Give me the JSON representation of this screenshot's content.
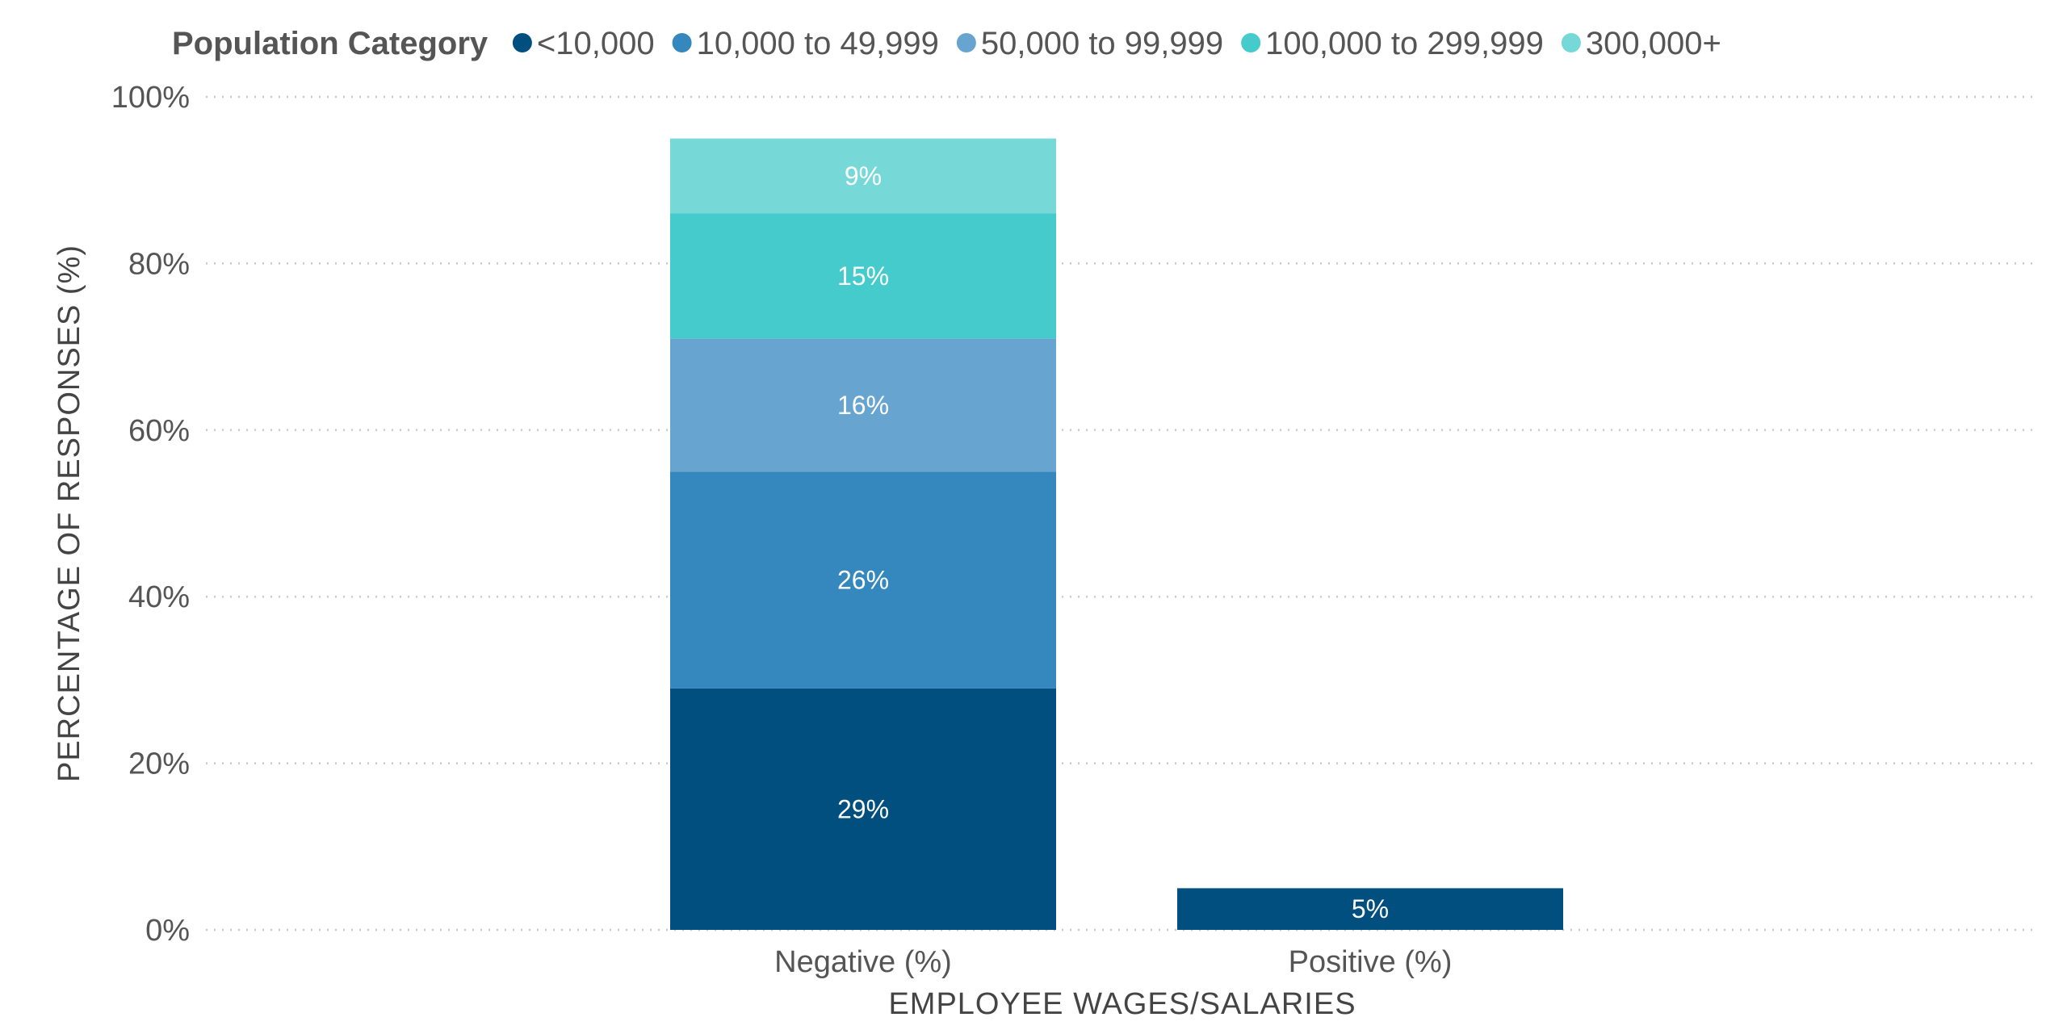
{
  "chart_data": {
    "type": "bar",
    "stacked": true,
    "legend_title": "Population Category",
    "legend_position": "top",
    "categories": [
      "Negative (%)",
      "Positive (%)"
    ],
    "series": [
      {
        "name": "<10,000",
        "color": "#004f7f",
        "values": [
          29,
          5
        ],
        "labels": [
          "29%",
          "5%"
        ]
      },
      {
        "name": "10,000 to 49,999",
        "color": "#3488be",
        "values": [
          26,
          null
        ],
        "labels": [
          "26%",
          ""
        ]
      },
      {
        "name": "50,000 to 99,999",
        "color": "#67a5d0",
        "values": [
          16,
          null
        ],
        "labels": [
          "16%",
          ""
        ]
      },
      {
        "name": "100,000 to 299,999",
        "color": "#45cbcc",
        "values": [
          15,
          null
        ],
        "labels": [
          "15%",
          ""
        ]
      },
      {
        "name": "300,000+",
        "color": "#76d9d8",
        "values": [
          9,
          null
        ],
        "labels": [
          "9%",
          ""
        ]
      }
    ],
    "xlabel": "EMPLOYEE WAGES/SALARIES",
    "ylabel": "PERCENTAGE OF RESPONSES (%)",
    "ylim": [
      0,
      100
    ],
    "yticks": [
      0,
      20,
      40,
      60,
      80,
      100
    ],
    "ytick_labels": [
      "0%",
      "20%",
      "40%",
      "60%",
      "80%",
      "100%"
    ],
    "grid": true
  }
}
